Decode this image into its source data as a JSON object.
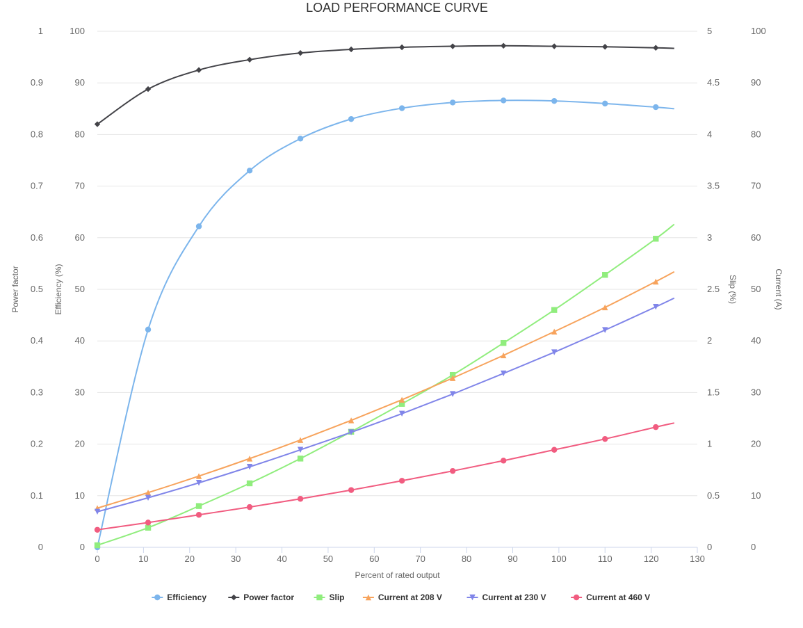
{
  "chart_data": {
    "type": "line",
    "title": "LOAD PERFORMANCE CURVE",
    "xlabel": "Percent of rated output",
    "xlim": [
      0,
      130
    ],
    "xticks": [
      0,
      10,
      20,
      30,
      40,
      50,
      60,
      70,
      80,
      90,
      100,
      110,
      120,
      130
    ],
    "grid": true,
    "legend_position": "bottom",
    "axes": [
      {
        "id": "pf",
        "label": "Power factor",
        "side": "left",
        "range": [
          0,
          1
        ],
        "ticks": [
          "0",
          "0.1",
          "0.2",
          "0.3",
          "0.4",
          "0.5",
          "0.6",
          "0.7",
          "0.8",
          "0.9",
          "1"
        ]
      },
      {
        "id": "eff",
        "label": "Efficiency (%)",
        "side": "left",
        "range": [
          0,
          100
        ],
        "ticks": [
          "0",
          "10",
          "20",
          "30",
          "40",
          "50",
          "60",
          "70",
          "80",
          "90",
          "100"
        ]
      },
      {
        "id": "slip",
        "label": "Slip (%)",
        "side": "right",
        "range": [
          0,
          5
        ],
        "ticks": [
          "0",
          "0.5",
          "1",
          "1.5",
          "2",
          "2.5",
          "3",
          "3.5",
          "4",
          "4.5",
          "5"
        ]
      },
      {
        "id": "cur",
        "label": "Current (A)",
        "side": "right",
        "range": [
          0,
          100
        ],
        "ticks": [
          "0",
          "10",
          "20",
          "30",
          "40",
          "50",
          "60",
          "70",
          "80",
          "90",
          "100"
        ]
      }
    ],
    "series": [
      {
        "name": "Efficiency",
        "axis": "eff",
        "color": "#7cb5ec",
        "marker": "circle",
        "smooth": true,
        "x": [
          0,
          11,
          22,
          33,
          44,
          55,
          66,
          77,
          88,
          99,
          110,
          121
        ],
        "y": [
          0,
          42.2,
          62.2,
          73.0,
          79.2,
          83.0,
          85.1,
          86.2,
          86.6,
          86.5,
          86.0,
          85.3
        ],
        "end": {
          "x": 125,
          "y": 85.0
        }
      },
      {
        "name": "Power factor",
        "axis": "pf",
        "color": "#434348",
        "marker": "diamond",
        "smooth": true,
        "x": [
          0,
          11,
          22,
          33,
          44,
          55,
          66,
          77,
          88,
          99,
          110,
          121
        ],
        "y": [
          0.82,
          0.888,
          0.925,
          0.945,
          0.958,
          0.965,
          0.969,
          0.971,
          0.972,
          0.971,
          0.97,
          0.968
        ],
        "end": {
          "x": 125,
          "y": 0.967
        }
      },
      {
        "name": "Slip",
        "axis": "slip",
        "color": "#90ed7d",
        "marker": "square",
        "smooth": true,
        "x": [
          0,
          11,
          22,
          33,
          44,
          55,
          66,
          77,
          88,
          99,
          110,
          121
        ],
        "y": [
          0.02,
          0.19,
          0.4,
          0.62,
          0.86,
          1.12,
          1.39,
          1.67,
          1.98,
          2.3,
          2.64,
          2.99
        ],
        "end": {
          "x": 125,
          "y": 3.13
        }
      },
      {
        "name": "Current at 208 V",
        "axis": "cur",
        "color": "#f7a35c",
        "marker": "triangle",
        "smooth": true,
        "x": [
          0,
          11,
          22,
          33,
          44,
          55,
          66,
          77,
          88,
          99,
          110,
          121
        ],
        "y": [
          7.6,
          10.6,
          13.8,
          17.2,
          20.8,
          24.6,
          28.6,
          32.8,
          37.2,
          41.8,
          46.5,
          51.5
        ],
        "end": {
          "x": 125,
          "y": 53.4
        }
      },
      {
        "name": "Current at 230 V",
        "axis": "cur",
        "color": "#8085e9",
        "marker": "triangle-down",
        "smooth": true,
        "x": [
          0,
          11,
          22,
          33,
          44,
          55,
          66,
          77,
          88,
          99,
          110,
          121
        ],
        "y": [
          6.9,
          9.6,
          12.5,
          15.6,
          18.9,
          22.3,
          25.9,
          29.7,
          33.7,
          37.8,
          42.1,
          46.6
        ],
        "end": {
          "x": 125,
          "y": 48.3
        }
      },
      {
        "name": "Current at 460 V",
        "axis": "cur",
        "color": "#f15c80",
        "marker": "circle",
        "smooth": true,
        "x": [
          0,
          11,
          22,
          33,
          44,
          55,
          66,
          77,
          88,
          99,
          110,
          121
        ],
        "y": [
          3.4,
          4.8,
          6.3,
          7.8,
          9.4,
          11.1,
          12.9,
          14.8,
          16.8,
          18.9,
          21.0,
          23.3
        ],
        "end": {
          "x": 125,
          "y": 24.1
        }
      }
    ]
  }
}
